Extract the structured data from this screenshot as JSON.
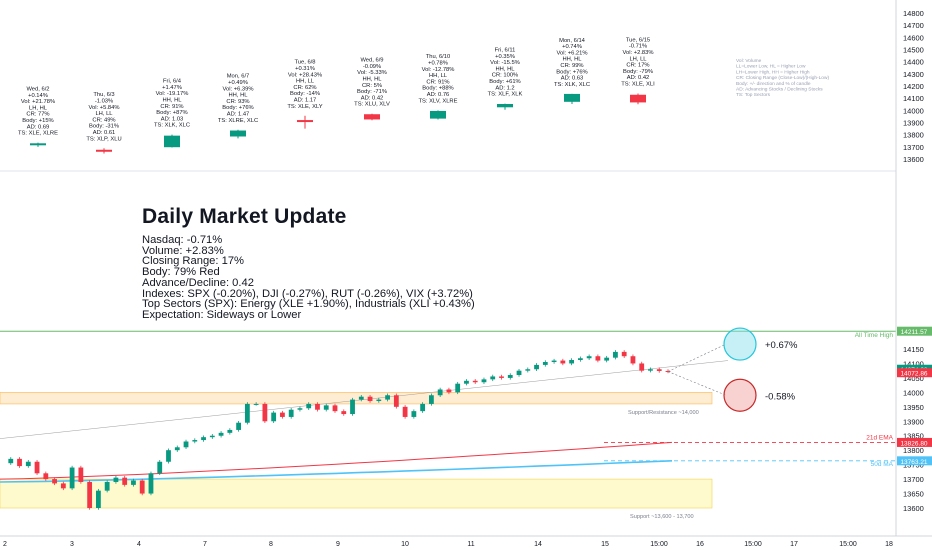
{
  "colors": {
    "up": "#089981",
    "down": "#f23645",
    "ath": "#66bb6a",
    "ema21": "#f23645",
    "ma50": "#4fc3f7",
    "zone_support_resistance": "#ffcc80",
    "zone_support": "#fff59d"
  },
  "overlay": {
    "title": "Daily Market Update",
    "lines": [
      "Nasdaq: -0.71%",
      "Volume: +2.83%",
      "Closing Range: 17%",
      "Body: 79% Red",
      "Advance/Decline: 0.42",
      "Indexes: SPX (-0.20%), DJI (-0.27%), RUT (-0.26%), VIX (+3.72%)",
      "Top Sectors (SPX): Energy (XLE +1.90%), Industrials (XLI +0.43%)",
      "Expectation: Sideways or Lower"
    ]
  },
  "legend": [
    "Vol: Volume",
    "LL=Lower Low, HL = Higher Low",
    "LH=Lower High, HH = Higher High",
    "CR: Closing Range (Close-Low)/(High-Low)",
    "Body: +/- direction and % of candle",
    "AD: Advancing Stocks / Declining Stocks",
    "TS: Top Sectors"
  ],
  "chart_data": [
    {
      "type": "candlestick",
      "panel": "top",
      "yaxis_ticks": [
        13600,
        13700,
        13800,
        13900,
        14000,
        14100,
        14200,
        14300,
        14400,
        14500,
        14600,
        14700,
        14800
      ],
      "ylim": [
        13580,
        14810
      ],
      "candles": [
        {
          "label": [
            "Wed, 6/2",
            "+0.14%",
            "Vol: +21.78%",
            "LH, HL",
            "CR: 77%",
            "Body: +15%",
            "AD: 0.69",
            "TS: XLE, XLRE"
          ],
          "o": 13720,
          "h": 13735,
          "l": 13700,
          "c": 13729
        },
        {
          "label": [
            "Thu, 6/3",
            "-1.03%",
            "Vol: +5.84%",
            "LH, LL",
            "CR: 49%",
            "Body: -31%",
            "AD: 0.61",
            "TS: XLP, XLU"
          ],
          "o": 13676,
          "h": 13688,
          "l": 13645,
          "c": 13662
        },
        {
          "label": [
            "Fri, 6/4",
            "+1.47%",
            "Vol: -19.17%",
            "HH, HL",
            "CR: 91%",
            "Body: +87%",
            "AD: 1.03",
            "TS: XLK, XLC"
          ],
          "o": 13697,
          "h": 13800,
          "l": 13695,
          "c": 13792
        },
        {
          "label": [
            "Mon, 6/7",
            "+0.49%",
            "Vol: +6.39%",
            "HH, HL",
            "CR: 93%",
            "Body: +76%",
            "AD: 1.47",
            "TS: XLRE, XLC"
          ],
          "o": 13785,
          "h": 13840,
          "l": 13770,
          "c": 13834
        },
        {
          "label": [
            "Tue, 6/8",
            "+0.31%",
            "Vol: +28.43%",
            "HH, LL",
            "CR: 62%",
            "Body: -14%",
            "AD: 1.17",
            "TS: XLE, XLY"
          ],
          "o": 13920,
          "h": 13955,
          "l": 13850,
          "c": 13905
        },
        {
          "label": [
            "Wed, 6/9",
            "-0.09%",
            "Vol: -5.33%",
            "HH, HL",
            "CR: 5%",
            "Body: -71%",
            "AD: 0.42",
            "TS: XLU, XLV"
          ],
          "o": 13968,
          "h": 13972,
          "l": 13918,
          "c": 13925
        },
        {
          "label": [
            "Thu, 6/10",
            "+0.78%",
            "Vol: -12.78%",
            "HH, LL",
            "CR: 91%",
            "Body: +88%",
            "AD: 0.76",
            "TS: XLV, XLRE"
          ],
          "o": 13932,
          "h": 14000,
          "l": 13925,
          "c": 13995
        },
        {
          "label": [
            "Fri, 6/11",
            "+0.35%",
            "Vol: -15.5%",
            "HH, HL",
            "CR: 100%",
            "Body: +61%",
            "AD: 1.2",
            "TS: XLF, XLK"
          ],
          "o": 14025,
          "h": 14055,
          "l": 14005,
          "c": 14052
        },
        {
          "label": [
            "Mon, 6/14",
            "+0.74%",
            "Vol: +6.21%",
            "HH, HL",
            "CR: 99%",
            "Body: +76%",
            "AD: 0.63",
            "TS: XLK, XLC"
          ],
          "o": 14070,
          "h": 14135,
          "l": 14052,
          "c": 14135
        },
        {
          "label": [
            "Tue, 6/15",
            "-0.71%",
            "Vol: +2.83%",
            "LH, LL",
            "CR: 17%",
            "Body: -79%",
            "AD: 0.42",
            "TS: XLE, XLI"
          ],
          "o": 14128,
          "h": 14138,
          "l": 14050,
          "c": 14065
        }
      ]
    },
    {
      "type": "line",
      "panel": "bottom",
      "ylim": [
        13540,
        14230
      ],
      "yaxis_ticks": [
        13600,
        13650,
        13700,
        13750,
        13800,
        13850,
        13900,
        13950,
        14000,
        14050,
        14100,
        14150
      ],
      "xaxis_ticks": [
        "2",
        "3",
        "4",
        "7",
        "8",
        "9",
        "10",
        "11",
        "14",
        "15",
        "15:00",
        "16",
        "15:00",
        "17",
        "15:00",
        "18"
      ],
      "price_path": [
        13755,
        13770,
        13745,
        13760,
        13720,
        13700,
        13685,
        13668,
        13740,
        13690,
        13600,
        13660,
        13690,
        13705,
        13680,
        13695,
        13650,
        13720,
        13760,
        13800,
        13810,
        13830,
        13835,
        13845,
        13850,
        13860,
        13870,
        13895,
        13960,
        13960,
        13900,
        13930,
        13915,
        13940,
        13945,
        13960,
        13940,
        13955,
        13935,
        13925,
        13975,
        13985,
        13970,
        13975,
        13990,
        13950,
        13915,
        13935,
        13960,
        13990,
        14010,
        14000,
        14030,
        14040,
        14035,
        14045,
        14055,
        14050,
        14060,
        14075,
        14080,
        14095,
        14105,
        14110,
        14100,
        14112,
        14118,
        14125,
        14110,
        14120,
        14140,
        14125,
        14100,
        14075,
        14080,
        14074,
        14072
      ],
      "ema21": {
        "label": "21d EMA",
        "value_label": "13826.80",
        "from": 13700,
        "to": 13826.8
      },
      "ma50": {
        "label": "50d MA",
        "value_label": "13763.21",
        "from": 13690,
        "to": 13763.21
      },
      "ath": {
        "label": "All Time High",
        "value_label": "14211.57",
        "value": 14211.57
      },
      "last_price_labels": [
        "14074.28",
        "14072.86"
      ],
      "zones": [
        {
          "label": "Support/Resistance ~14,000",
          "low": 13960,
          "high": 14000
        },
        {
          "label": "Support ~13,600 - 13,700",
          "low": 13600,
          "high": 13700
        }
      ],
      "scenarios": [
        {
          "label": "+0.67%",
          "value": 14167
        },
        {
          "label": "-0.58%",
          "value": 13990
        }
      ]
    }
  ]
}
